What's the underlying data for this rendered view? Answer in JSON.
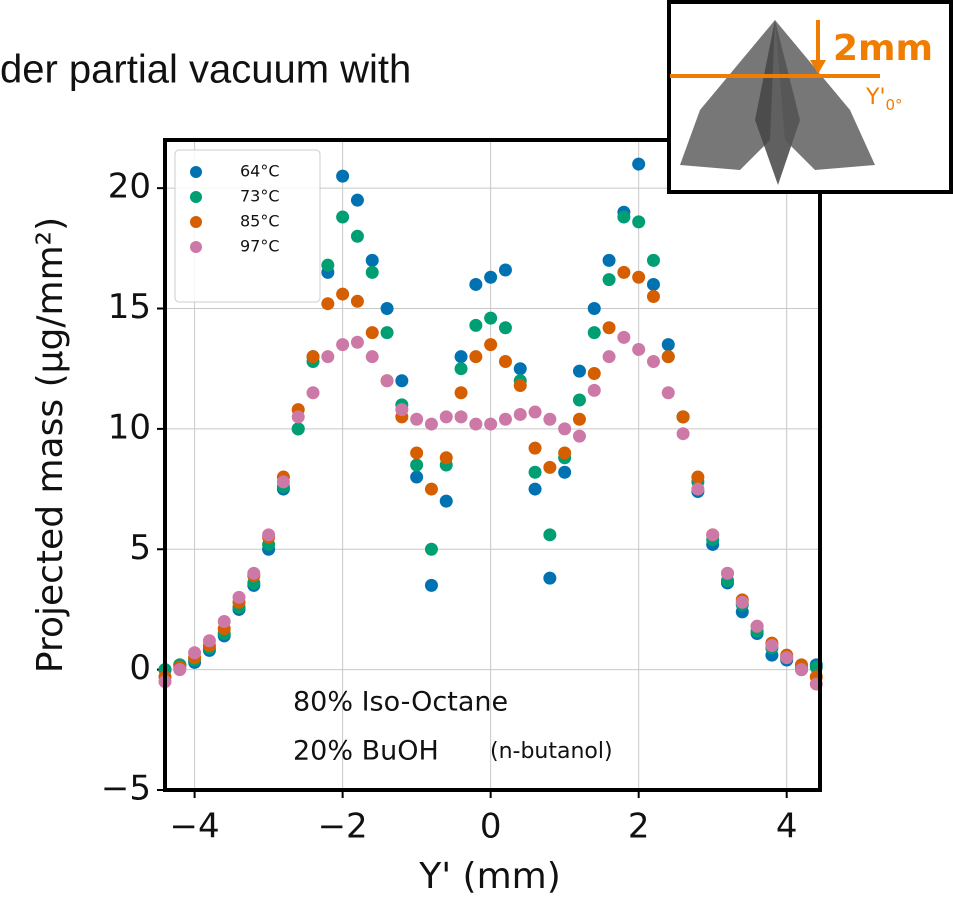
{
  "chart_data": {
    "type": "scatter",
    "title": "der partial vacuum with",
    "x_label": "Y' (mm)",
    "y_label": "Projected mass (μg/mm²)",
    "xlim": [
      -4.4,
      4.45
    ],
    "ylim": [
      -5,
      22
    ],
    "xticks": [
      {
        "value": -4,
        "label": "−4"
      },
      {
        "value": -2,
        "label": "−2"
      },
      0,
      2,
      4
    ],
    "yticks": [
      {
        "value": -5,
        "label": "−5"
      },
      0,
      5,
      10,
      15,
      20
    ],
    "grid": true,
    "legend": "upper left",
    "annotations": [
      "80% Iso-Octane",
      "20% BuOH",
      "(n-butanol)"
    ],
    "inset": {
      "label": "2mm",
      "axis_label": "Y'",
      "axis_sub": "0°"
    },
    "x": [
      -4.4,
      -4.2,
      -4.0,
      -3.8,
      -3.6,
      -3.4,
      -3.2,
      -3.0,
      -2.8,
      -2.6,
      -2.4,
      -2.2,
      -2.0,
      -1.8,
      -1.6,
      -1.4,
      -1.2,
      -1.0,
      -0.8,
      -0.6,
      -0.4,
      -0.2,
      0,
      0.2,
      0.4,
      0.6,
      0.8,
      1.0,
      1.2,
      1.4,
      1.6,
      1.8,
      2.0,
      2.2,
      2.4,
      2.6,
      2.8,
      3.0,
      3.2,
      3.4,
      3.6,
      3.8,
      4.0,
      4.2,
      4.4
    ],
    "series": [
      {
        "name": "64°C",
        "color": "#0072b2",
        "values": [
          0,
          0.2,
          0.3,
          0.8,
          1.4,
          2.5,
          3.5,
          5,
          7.5,
          10,
          13,
          16.5,
          20.5,
          19.5,
          17,
          15,
          12,
          8,
          3.5,
          7,
          13,
          16,
          16.3,
          16.6,
          12.5,
          7.5,
          3.8,
          8.2,
          12.4,
          15,
          17,
          19,
          21,
          16,
          13.5,
          10.5,
          7.4,
          5.2,
          3.6,
          2.4,
          1.5,
          0.6,
          0.4,
          0,
          0.2
        ]
      },
      {
        "name": "73°C",
        "color": "#009e73",
        "values": [
          0,
          0.2,
          0.4,
          0.9,
          1.5,
          2.6,
          3.6,
          5.2,
          7.6,
          10,
          12.8,
          16.8,
          18.8,
          18,
          16.5,
          14,
          11,
          8.5,
          5,
          8.5,
          12.5,
          14.3,
          14.6,
          14.2,
          12,
          8.2,
          5.6,
          8.8,
          11.2,
          14,
          16.2,
          18.8,
          18.6,
          17,
          13,
          10.5,
          7.8,
          5.4,
          3.7,
          2.7,
          1.6,
          0.9,
          0.5,
          0.1,
          0.1
        ]
      },
      {
        "name": "85°C",
        "color": "#d55e00",
        "values": [
          -0.3,
          0.1,
          0.5,
          1,
          1.7,
          2.8,
          3.9,
          5.5,
          8,
          10.8,
          13,
          15.2,
          15.6,
          15.3,
          14,
          12,
          10.5,
          9,
          7.5,
          8.8,
          11.5,
          13,
          13.5,
          12.8,
          11.8,
          9.2,
          8.4,
          9,
          10.4,
          12.3,
          14.2,
          16.5,
          16.3,
          15.5,
          13,
          10.5,
          8,
          5.6,
          4,
          2.9,
          1.8,
          1.1,
          0.6,
          0.2,
          -0.3
        ]
      },
      {
        "name": "97°C",
        "color": "#cc79a7",
        "values": [
          -0.5,
          0,
          0.7,
          1.2,
          2,
          3,
          4,
          5.6,
          7.8,
          10.5,
          11.5,
          13,
          13.5,
          13.6,
          13,
          12,
          10.8,
          10.4,
          10.2,
          10.5,
          10.5,
          10.2,
          10.2,
          10.4,
          10.6,
          10.7,
          10.4,
          10,
          9.7,
          11.6,
          13,
          13.8,
          13.3,
          12.8,
          11.5,
          9.8,
          7.5,
          5.6,
          4,
          2.8,
          1.8,
          1,
          0.5,
          0,
          -0.6
        ]
      }
    ]
  }
}
